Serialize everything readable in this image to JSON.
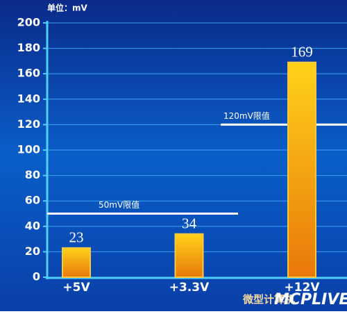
{
  "chart_data": {
    "type": "bar",
    "title": "单位：mV",
    "categories": [
      "+5V",
      "+3.3V",
      "+12V"
    ],
    "values": [
      23,
      34,
      169
    ],
    "ylim": [
      0,
      200
    ],
    "yticks": [
      0,
      20,
      40,
      60,
      80,
      100,
      120,
      140,
      160,
      180,
      200
    ],
    "grid": true,
    "reference_lines": [
      {
        "value": 50,
        "label": "50mV限值"
      },
      {
        "value": 120,
        "label": "120mV限值"
      }
    ],
    "watermark": [
      "微型计算机",
      "MCPLIVE"
    ]
  }
}
